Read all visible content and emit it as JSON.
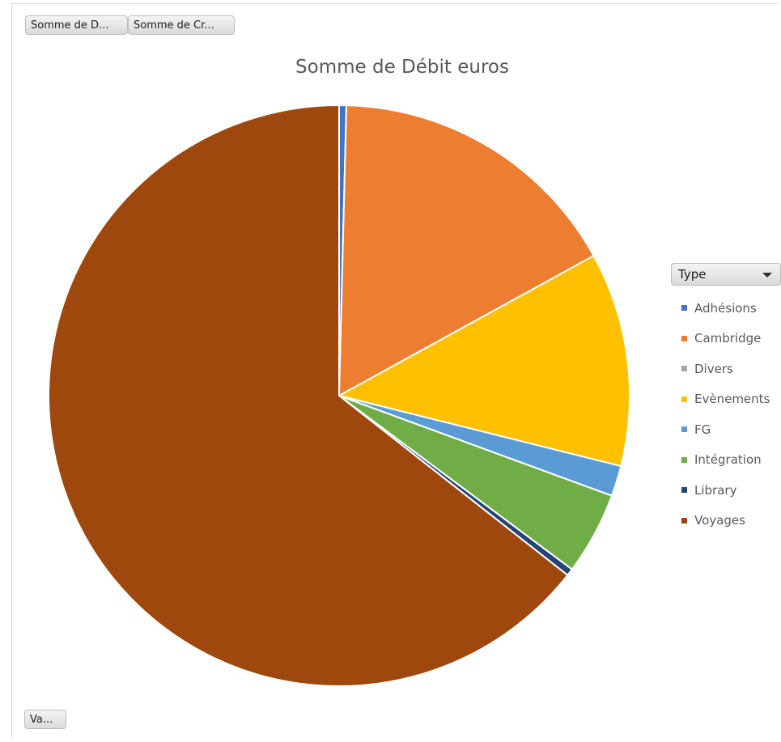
{
  "buttons": {
    "debit": "Somme de D...",
    "credit": "Somme de Cr...",
    "values": "Va..."
  },
  "legend_filter": {
    "label": "Type"
  },
  "chart_data": {
    "type": "pie",
    "title": "Somme de Débit euros",
    "legend_position": "right",
    "categories": [
      "Adhésions",
      "Cambridge",
      "Divers",
      "Evènements",
      "FG",
      "Intégration",
      "Library",
      "Voyages"
    ],
    "values": [
      0.4,
      16.6,
      0.0,
      11.9,
      1.7,
      4.6,
      0.4,
      64.4
    ],
    "colors": [
      "#4472c4",
      "#ed7d31",
      "#a5a5a5",
      "#ffc000",
      "#5b9bd5",
      "#70ad47",
      "#264478",
      "#9e480e"
    ]
  }
}
